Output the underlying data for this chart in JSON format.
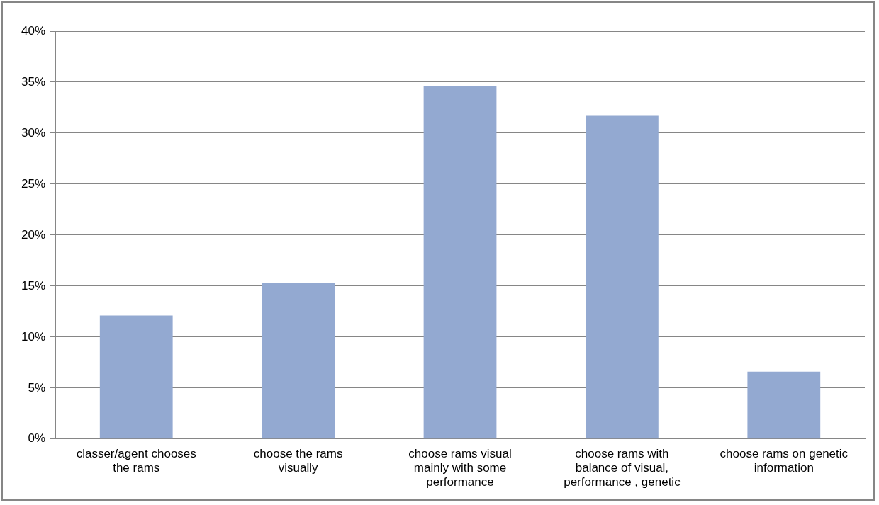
{
  "chart_data": {
    "type": "bar",
    "categories": [
      "classer/agent chooses the rams",
      "choose the rams visually",
      "choose rams visual mainly with some performance",
      "choose rams with balance of visual, performance , genetic",
      "choose rams on genetic information"
    ],
    "values": [
      12.1,
      15.3,
      34.6,
      31.7,
      6.6
    ],
    "color": "#93a9d1",
    "ylim": [
      0,
      40
    ],
    "yticks": [
      {
        "value": 0,
        "label": "0%"
      },
      {
        "value": 5,
        "label": "5%"
      },
      {
        "value": 10,
        "label": "10%"
      },
      {
        "value": 15,
        "label": "15%"
      },
      {
        "value": 20,
        "label": "20%"
      },
      {
        "value": 25,
        "label": "25%"
      },
      {
        "value": 30,
        "label": "30%"
      },
      {
        "value": 35,
        "label": "35%"
      },
      {
        "value": 40,
        "label": "40%"
      }
    ],
    "grid": "y",
    "legend": false
  }
}
